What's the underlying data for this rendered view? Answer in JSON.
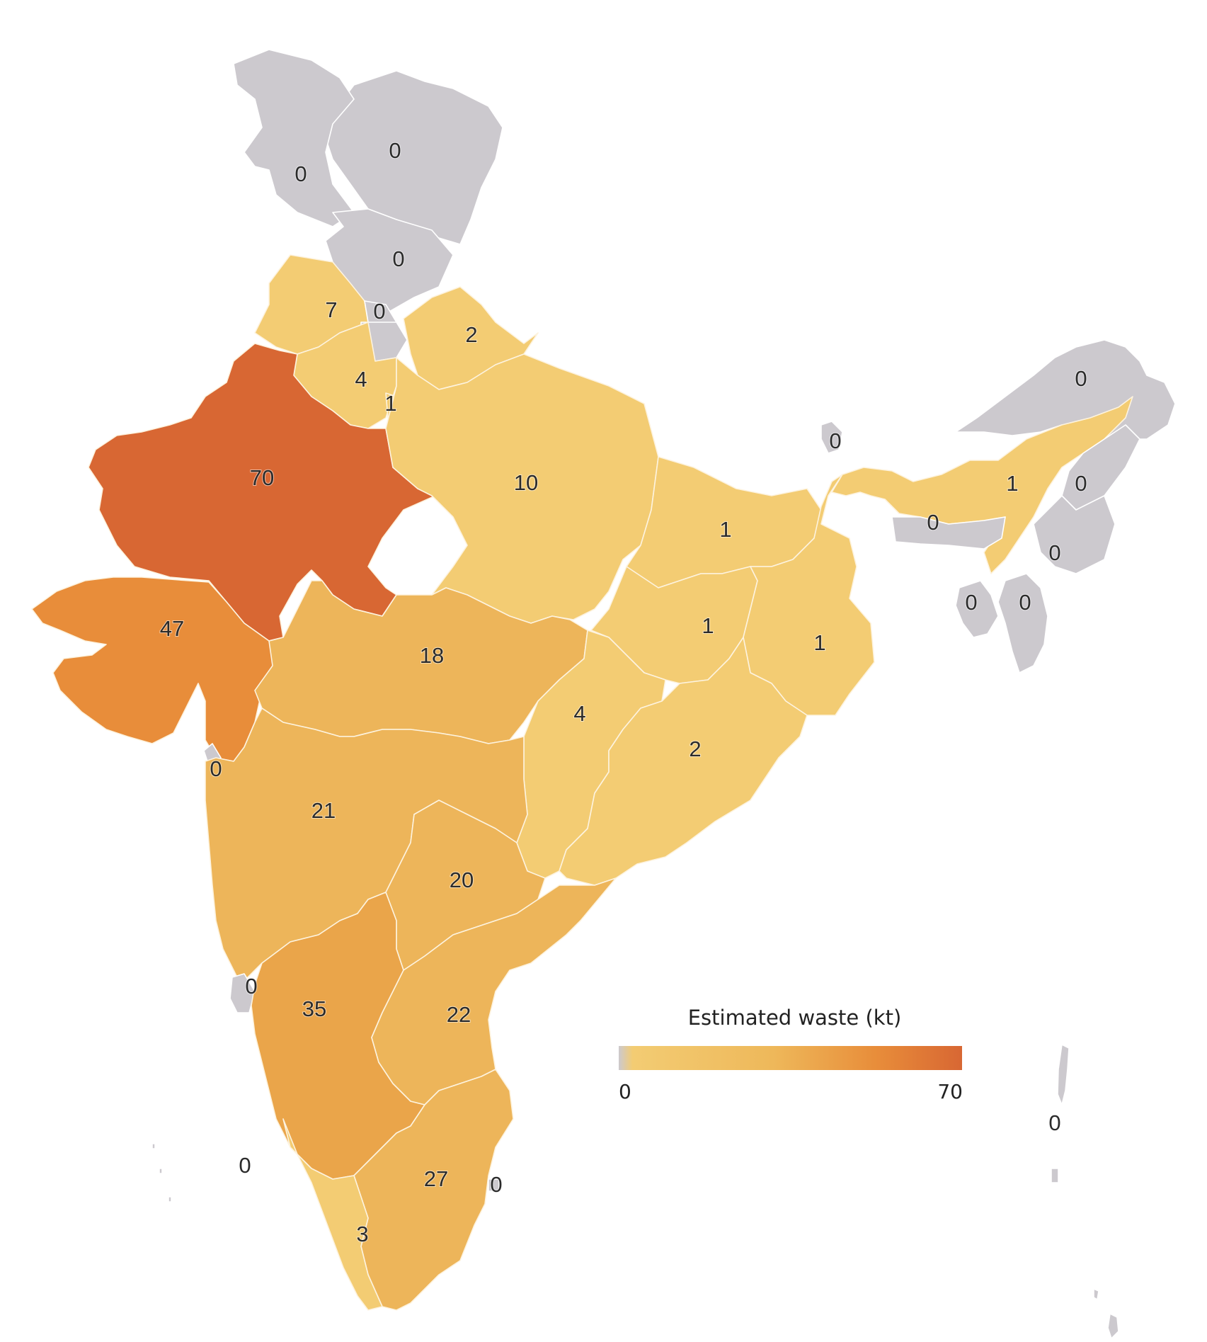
{
  "legend": {
    "title": "Estimated waste (kt)",
    "min_label": "0",
    "max_label": "70",
    "scale_min": 0,
    "scale_max": 70
  },
  "colors": {
    "zero": "#ccc9ce",
    "low": "#f3cc73",
    "mid": "#eaa54a",
    "high": "#e88d3a",
    "max": "#d86733"
  },
  "regions": [
    {
      "id": "ladakh",
      "value": 0,
      "label": "0"
    },
    {
      "id": "jk-west",
      "value": 0,
      "label": "0"
    },
    {
      "id": "jk-south",
      "value": 0,
      "label": "0"
    },
    {
      "id": "punjab",
      "value": 7,
      "label": "7"
    },
    {
      "id": "chandigarh",
      "value": 0,
      "label": "0"
    },
    {
      "id": "himachal",
      "value": 0,
      "label": "0"
    },
    {
      "id": "uttarakhand",
      "value": 2,
      "label": "2"
    },
    {
      "id": "haryana",
      "value": 4,
      "label": "4"
    },
    {
      "id": "delhi",
      "value": 1,
      "label": "1"
    },
    {
      "id": "rajasthan",
      "value": 70,
      "label": "70"
    },
    {
      "id": "uttar-pradesh",
      "value": 10,
      "label": "10"
    },
    {
      "id": "gujarat",
      "value": 47,
      "label": "47"
    },
    {
      "id": "madhya-pradesh",
      "value": 18,
      "label": "18"
    },
    {
      "id": "bihar",
      "value": 1,
      "label": "1"
    },
    {
      "id": "jharkhand",
      "value": 1,
      "label": "1"
    },
    {
      "id": "west-bengal",
      "value": 1,
      "label": "1"
    },
    {
      "id": "chhattisgarh",
      "value": 4,
      "label": "4"
    },
    {
      "id": "odisha",
      "value": 2,
      "label": "2"
    },
    {
      "id": "dnh-daman",
      "value": 0,
      "label": "0"
    },
    {
      "id": "maharashtra",
      "value": 21,
      "label": "21"
    },
    {
      "id": "telangana",
      "value": 20,
      "label": "20"
    },
    {
      "id": "goa",
      "value": 0,
      "label": "0"
    },
    {
      "id": "karnataka",
      "value": 35,
      "label": "35"
    },
    {
      "id": "andhra-pradesh",
      "value": 22,
      "label": "22"
    },
    {
      "id": "lakshadweep",
      "value": 0,
      "label": "0"
    },
    {
      "id": "tamil-nadu",
      "value": 27,
      "label": "27"
    },
    {
      "id": "puducherry",
      "value": 0,
      "label": "0"
    },
    {
      "id": "kerala",
      "value": 3,
      "label": "3"
    },
    {
      "id": "sikkim",
      "value": 0,
      "label": "0"
    },
    {
      "id": "arunachal",
      "value": 0,
      "label": "0"
    },
    {
      "id": "assam",
      "value": 1,
      "label": "1"
    },
    {
      "id": "nagaland",
      "value": 0,
      "label": "0"
    },
    {
      "id": "meghalaya",
      "value": 0,
      "label": "0"
    },
    {
      "id": "manipur",
      "value": 0,
      "label": "0"
    },
    {
      "id": "tripura",
      "value": 0,
      "label": "0"
    },
    {
      "id": "mizoram",
      "value": 0,
      "label": "0"
    },
    {
      "id": "andaman-nicobar",
      "value": 0,
      "label": "0"
    }
  ]
}
